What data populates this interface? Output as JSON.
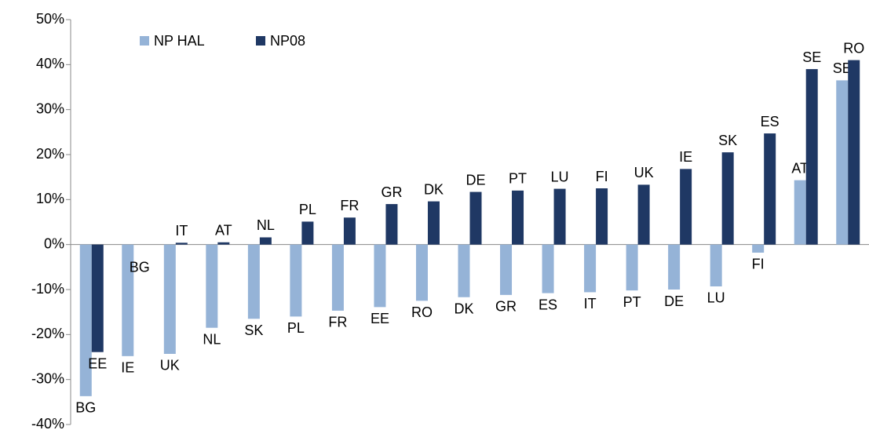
{
  "chart_data": {
    "type": "bar",
    "categories": [
      null,
      null,
      null,
      null,
      null,
      null,
      null,
      null,
      null,
      null,
      null,
      null,
      null,
      null,
      null,
      null,
      null,
      null,
      null
    ],
    "series": [
      {
        "name": "NP HAL",
        "color": "#95b3d7",
        "values": [
          -33.7,
          -24.8,
          -24.3,
          -18.5,
          -16.5,
          -16,
          -14.7,
          -13.9,
          -12.5,
          -11.7,
          -11.2,
          -10.8,
          -10.6,
          -10.2,
          -10,
          -9.3,
          -1.8,
          14.3,
          36.5
        ],
        "labels": [
          "BG",
          "IE",
          "UK",
          "NL",
          "SK",
          "PL",
          "FR",
          "EE",
          "RO",
          "DK",
          "GR",
          "ES",
          "IT",
          "PT",
          "DE",
          "LU",
          "FI",
          "AT",
          "SE"
        ]
      },
      {
        "name": "NP08",
        "color": "#1f3864",
        "values": [
          -23.9,
          0,
          0.4,
          0.5,
          1.6,
          5.1,
          6,
          9,
          9.6,
          11.7,
          12,
          12.4,
          12.5,
          13.3,
          16.8,
          20.5,
          24.7,
          39,
          41
        ],
        "labels": [
          "EE",
          "BG",
          "IT",
          "AT",
          "NL",
          "PL",
          "FR",
          "GR",
          "DK",
          "DE",
          "PT",
          "LU",
          "FI",
          "UK",
          "IE",
          "SK",
          "ES",
          "SE",
          "RO"
        ]
      }
    ],
    "ylim": [
      -40,
      50
    ],
    "yticks": [
      {
        "value": -40,
        "label": "-40%"
      },
      {
        "value": -30,
        "label": "-30%"
      },
      {
        "value": -20,
        "label": "-20%"
      },
      {
        "value": -10,
        "label": "-10%"
      },
      {
        "value": 0,
        "label": "0%"
      },
      {
        "value": 10,
        "label": "10%"
      },
      {
        "value": 20,
        "label": "20%"
      },
      {
        "value": 30,
        "label": "30%"
      },
      {
        "value": 40,
        "label": "40%"
      },
      {
        "value": 50,
        "label": "50%"
      }
    ],
    "grid": false,
    "legend": "upper left"
  }
}
